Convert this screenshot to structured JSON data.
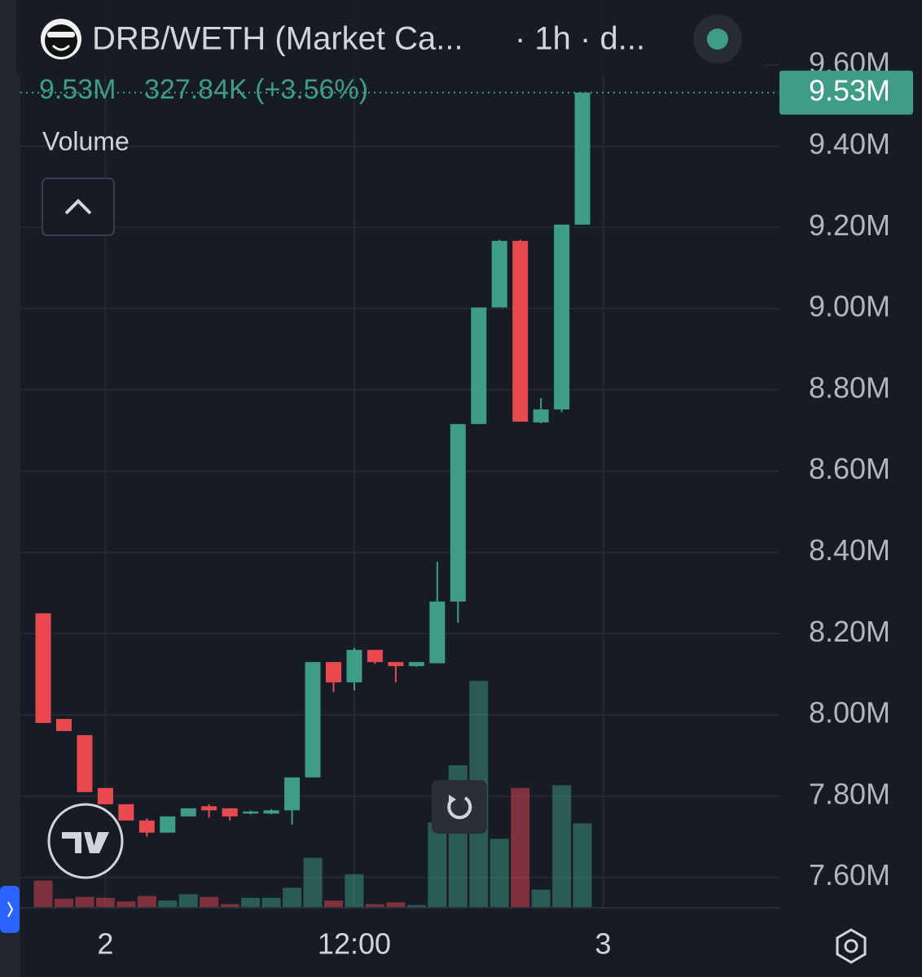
{
  "chart_data": {
    "type": "candlestick",
    "title": "DRB/WETH (Market Ca...",
    "interval_label": "· 1h · d...",
    "legend_price": "9.53M",
    "legend_change": "327.84K (+3.56%)",
    "volume_label": "Volume",
    "price_label": "9.53M",
    "up_color": "#3f9c86",
    "down_color": "#e84a4f",
    "x": [
      -3,
      -2,
      -1,
      0,
      1,
      2,
      3,
      4,
      5,
      6,
      7,
      8,
      9,
      10,
      11,
      12,
      13,
      14,
      15,
      16,
      17,
      18,
      19,
      20,
      21,
      22,
      23
    ],
    "open": [
      8250000,
      7990000,
      7950000,
      7820000,
      7780000,
      7740000,
      7710000,
      7750000,
      7775000,
      7770000,
      7757000,
      7757000,
      7765000,
      7846000,
      8130000,
      8080000,
      8160000,
      8130000,
      8120000,
      8127000,
      8279000,
      8716000,
      9003000,
      9167000,
      8720000,
      8752000,
      9207000
    ],
    "high": [
      8250000,
      7990000,
      7950000,
      7820000,
      7780000,
      7745000,
      7750000,
      7770000,
      7780000,
      7770000,
      7765000,
      7768000,
      7846000,
      8130000,
      8130000,
      8165000,
      8160000,
      8130000,
      8130000,
      8377000,
      8716000,
      9003000,
      9170000,
      9170000,
      8780000,
      9207000,
      9532000
    ],
    "low": [
      7980000,
      7960000,
      7810000,
      7780000,
      7740000,
      7700000,
      7710000,
      7750000,
      7747000,
      7740000,
      7755000,
      7755000,
      7730000,
      7846000,
      8056000,
      8060000,
      8125000,
      8080000,
      8118000,
      8127000,
      8227000,
      8716000,
      9003000,
      8722000,
      8718000,
      8745000,
      9207000
    ],
    "close": [
      7980000,
      7960000,
      7810000,
      7780000,
      7740000,
      7710000,
      7750000,
      7770000,
      7765000,
      7750000,
      7762000,
      7765000,
      7846000,
      8130000,
      8080000,
      8160000,
      8130000,
      8120000,
      8130000,
      8279000,
      8716000,
      9003000,
      9167000,
      8722000,
      8752000,
      9207000,
      9532000
    ],
    "volume": [
      30,
      10,
      12,
      11,
      7,
      13,
      8,
      15,
      12,
      4,
      11,
      11,
      22,
      55,
      8,
      37,
      4,
      6,
      3,
      94,
      157,
      250,
      76,
      132,
      20,
      135,
      93
    ],
    "ylim": [
      7525000,
      9760000
    ],
    "y2lim": [
      0,
      1000
    ],
    "yticks": [
      {
        "value": 7600000,
        "label": "7.60M"
      },
      {
        "value": 7800000,
        "label": "7.80M"
      },
      {
        "value": 8000000,
        "label": "8.00M"
      },
      {
        "value": 8200000,
        "label": "8.20M"
      },
      {
        "value": 8400000,
        "label": "8.40M"
      },
      {
        "value": 8600000,
        "label": "8.60M"
      },
      {
        "value": 8800000,
        "label": "8.80M"
      },
      {
        "value": 9000000,
        "label": "9.00M"
      },
      {
        "value": 9200000,
        "label": "9.20M"
      },
      {
        "value": 9400000,
        "label": "9.40M"
      },
      {
        "value": 9600000,
        "label": "9.60M"
      }
    ],
    "xlim": [
      -4.1,
      32.5
    ],
    "xticks": [
      {
        "value": 0,
        "label": "2"
      },
      {
        "value": 12,
        "label": "12:00"
      },
      {
        "value": 24,
        "label": "3"
      }
    ],
    "grid": true
  }
}
